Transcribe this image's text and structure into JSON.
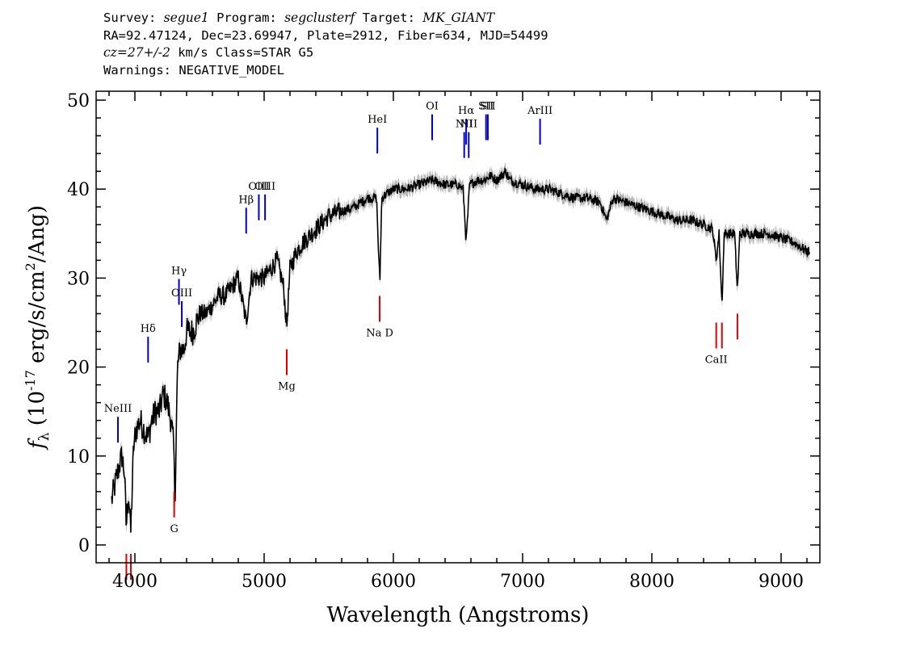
{
  "header": {
    "survey_label": "Survey:",
    "survey": "segue1",
    "program_label": "Program:",
    "program": "segclusterf",
    "target_label": "Target:",
    "target": "MK_GIANT",
    "line2": "RA=92.47124, Dec=23.69947, Plate=2912, Fiber=634, MJD=54499",
    "cz_label": "cz=27+/-2",
    "cz_rest": " km/s Class=STAR G5",
    "warnings": "Warnings: NEGATIVE_MODEL"
  },
  "chart_data": {
    "type": "line",
    "xlabel": "Wavelength (Angstroms)",
    "ylabel": "fλ (10⁻¹⁷ erg/s/cm²/Ang)",
    "xlim": [
      3700,
      9300
    ],
    "ylim": [
      -2,
      51
    ],
    "xticks": [
      4000,
      5000,
      6000,
      7000,
      8000,
      9000
    ],
    "yticks": [
      0,
      10,
      20,
      30,
      40,
      50
    ],
    "grid": false,
    "colors": {
      "flux": "#000000",
      "error": "#b4b4b4",
      "emission": "#0000cc",
      "absorption": "#dd0000"
    },
    "series": [
      {
        "x": [
          3820,
          3850,
          3880,
          3900,
          3920,
          3933,
          3950,
          3968,
          3990,
          4010,
          4040,
          4070,
          4102,
          4130,
          4160,
          4190,
          4220,
          4250,
          4280,
          4300,
          4310,
          4330,
          4350,
          4380,
          4400,
          4450,
          4500,
          4550,
          4600,
          4650,
          4700,
          4750,
          4800,
          4861,
          4900,
          4950,
          5000,
          5050,
          5100,
          5150,
          5175,
          5200,
          5250,
          5300,
          5400,
          5500,
          5600,
          5700,
          5800,
          5870,
          5890,
          5896,
          5910,
          5950,
          6000,
          6050,
          6100,
          6200,
          6300,
          6400,
          6500,
          6540,
          6563,
          6590,
          6650,
          6700,
          6750,
          6800,
          6870,
          6900,
          7000,
          7100,
          7200,
          7300,
          7400,
          7500,
          7600,
          7650,
          7700,
          7800,
          7900,
          8000,
          8100,
          8200,
          8300,
          8400,
          8470,
          8498,
          8520,
          8542,
          8560,
          8600,
          8640,
          8662,
          8680,
          8720,
          8800,
          8900,
          9000,
          9100,
          9150,
          9200,
          9220
        ],
        "y": [
          5,
          7,
          9,
          10,
          8,
          2,
          6,
          1.5,
          11,
          13,
          14,
          13,
          12,
          14,
          15,
          15,
          17,
          16,
          14,
          11,
          5,
          20,
          22,
          22,
          24,
          24,
          26,
          26,
          27,
          28,
          28,
          29,
          30,
          25,
          30,
          30,
          30,
          31,
          32,
          29,
          24.5,
          31,
          33,
          34,
          35.5,
          37,
          37.5,
          38,
          39,
          39,
          31,
          30,
          39,
          39.5,
          40,
          40,
          40,
          40.5,
          41,
          40.5,
          40.5,
          40,
          34,
          40.5,
          41,
          41,
          41.5,
          41,
          42,
          41,
          40.5,
          40,
          40,
          39.5,
          39,
          39,
          38.5,
          36.5,
          39,
          38.5,
          38,
          37.5,
          37,
          36.5,
          36.5,
          36,
          35.5,
          32,
          35,
          27,
          35,
          35,
          35,
          28.5,
          35,
          35,
          35,
          35,
          34.5,
          34,
          33.5,
          33,
          33
        ]
      }
    ],
    "emission_lines": [
      {
        "label": "NeIII",
        "x": 3869,
        "y": 11.5
      },
      {
        "label": "Hδ",
        "x": 4102,
        "y": 20.5
      },
      {
        "label": "Hγ",
        "x": 4341,
        "y": 27
      },
      {
        "label": "OIII",
        "x": 4363,
        "y": 24.5
      },
      {
        "label": "Hβ",
        "x": 4861,
        "y": 35
      },
      {
        "label": "OIII",
        "x": 4959,
        "y": 36.5
      },
      {
        "label": "OIII",
        "x": 5007,
        "y": 36.5
      },
      {
        "label": "HeI",
        "x": 5876,
        "y": 44
      },
      {
        "label": "OI",
        "x": 6300,
        "y": 45.5
      },
      {
        "label": "NII",
        "x": 6548,
        "y": 43.5
      },
      {
        "label": "Hα",
        "x": 6563,
        "y": 45
      },
      {
        "label": "NII",
        "x": 6583,
        "y": 43.5
      },
      {
        "label": "SII",
        "x": 6717,
        "y": 45.5
      },
      {
        "label": "SII",
        "x": 6731,
        "y": 45.5
      },
      {
        "label": "ArIII",
        "x": 7135,
        "y": 45
      }
    ],
    "absorption_lines": [
      {
        "label": "",
        "x": 3934,
        "y": -1
      },
      {
        "label": "",
        "x": 3969,
        "y": -1
      },
      {
        "label": "G",
        "x": 4304,
        "y": 6
      },
      {
        "label": "Mg",
        "x": 5175,
        "y": 22
      },
      {
        "label": "Na D",
        "x": 5894,
        "y": 28
      },
      {
        "label": "CaII",
        "x": 8498,
        "y": 25
      },
      {
        "label": "",
        "x": 8542,
        "y": 25
      },
      {
        "label": "",
        "x": 8662,
        "y": 26
      }
    ]
  }
}
